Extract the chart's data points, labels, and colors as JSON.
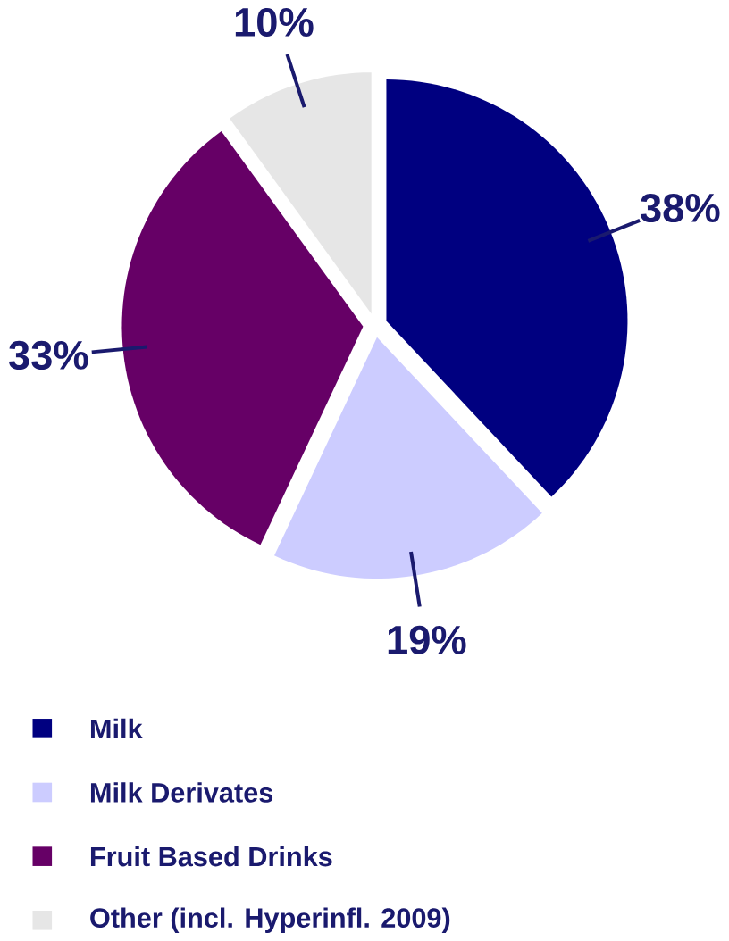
{
  "chart_data": {
    "type": "pie",
    "categories": [
      "Milk",
      "Milk Derivates",
      "Fruit Based Drinks",
      "Other (incl. Hyperinfl. 2009)"
    ],
    "values": [
      38,
      19,
      33,
      10
    ],
    "colors": [
      "#000080",
      "#ccccff",
      "#660066",
      "#e6e6e6"
    ],
    "value_labels": [
      "38%",
      "19%",
      "33%",
      "10%"
    ],
    "legend": "bottom"
  }
}
